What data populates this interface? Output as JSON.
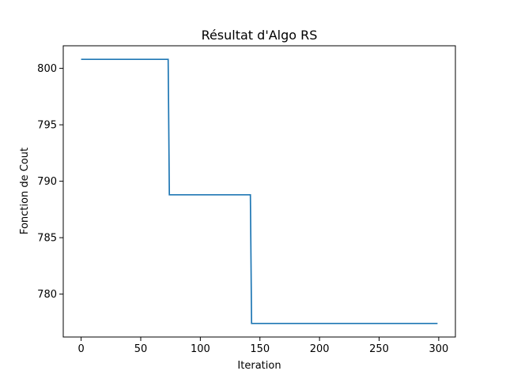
{
  "colors": {
    "series_line": "#1f77b4",
    "axes": "#000000",
    "background": "#ffffff"
  },
  "chart_data": {
    "type": "line",
    "title": "Résultat d'Algo RS",
    "xlabel": "Iteration",
    "ylabel": "Fonction de Cout",
    "xlim": [
      -15,
      314
    ],
    "ylim": [
      776.2,
      802.0
    ],
    "xticks": [
      0,
      50,
      100,
      150,
      200,
      250,
      300
    ],
    "xtick_labels": [
      "0",
      "50",
      "100",
      "150",
      "200",
      "250",
      "300"
    ],
    "yticks": [
      780,
      785,
      790,
      795,
      800
    ],
    "ytick_labels": [
      "780",
      "785",
      "790",
      "795",
      "800"
    ],
    "grid": false,
    "legend": "none",
    "series": [
      {
        "x": [
          0,
          38,
          73,
          74,
          142,
          143,
          299
        ],
        "y": [
          800.8,
          800.8,
          800.8,
          788.8,
          788.8,
          777.4,
          777.4
        ]
      }
    ]
  }
}
